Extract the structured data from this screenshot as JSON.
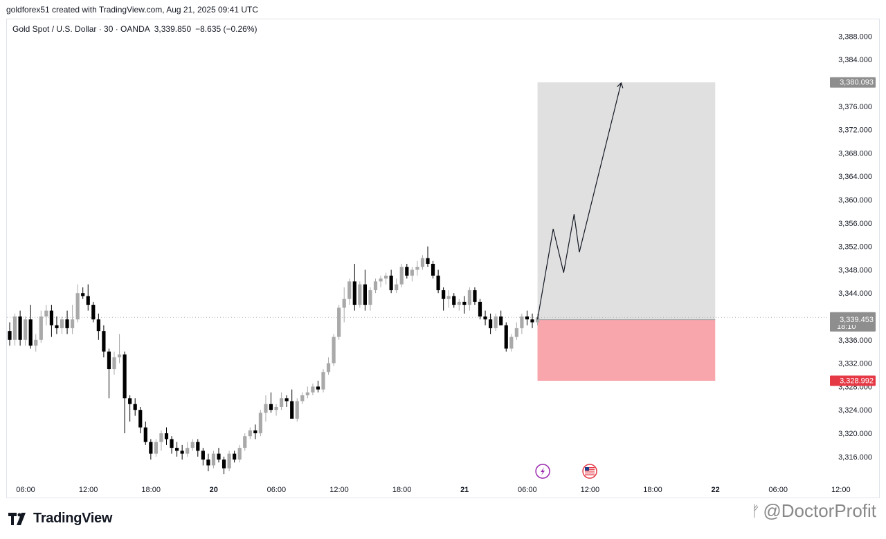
{
  "header": {
    "attribution": "goldforex51 created with TradingView.com, Aug 21, 2025 09:41 UTC"
  },
  "legend": {
    "symbol": "Gold Spot / U.S. Dollar · 30 · OANDA",
    "last": "3,339.850",
    "change": "−8.635 (−0.26%)"
  },
  "branding": {
    "logo_text": "TradingView",
    "watermark": "@DoctorProfit"
  },
  "colors": {
    "up_candle": "#a9a9a9",
    "down_candle": "#000000",
    "target_zone": "#e0e0e0",
    "stop_zone": "#f8a5ac",
    "stop_badge": "#e53945",
    "price_badge": "#8e8e8e"
  },
  "chart_data": {
    "type": "candlestick",
    "y_axis": {
      "ticks": [
        "3,388.000",
        "3,384.000",
        "3,380.000",
        "3,376.000",
        "3,372.000",
        "3,368.000",
        "3,364.000",
        "3,360.000",
        "3,356.000",
        "3,352.000",
        "3,348.000",
        "3,344.000",
        "3,340.000",
        "3,336.000",
        "3,332.000",
        "3,328.000",
        "3,324.000",
        "3,320.000",
        "3,316.000"
      ],
      "tick_values": [
        3388,
        3384,
        3380,
        3376,
        3372,
        3368,
        3364,
        3360,
        3356,
        3352,
        3348,
        3344,
        3340,
        3336,
        3332,
        3328,
        3324,
        3320,
        3316
      ],
      "range": [
        3312,
        3391
      ]
    },
    "x_axis": {
      "ticks": [
        "06:00",
        "12:00",
        "18:00",
        "20",
        "06:00",
        "12:00",
        "18:00",
        "21",
        "06:00",
        "12:00",
        "18:00",
        "22",
        "06:00",
        "12:00"
      ],
      "tick_bar_index": [
        0,
        12,
        24,
        36,
        48,
        60,
        72,
        84,
        96,
        108,
        120,
        132,
        144,
        156
      ],
      "bold": [
        false,
        false,
        false,
        true,
        false,
        false,
        false,
        true,
        false,
        false,
        false,
        true,
        false,
        false
      ]
    },
    "price_labels": [
      {
        "value": 3380.093,
        "label": "3,380.093",
        "color": "#8e8e8e"
      },
      {
        "value": 3339.85,
        "label": "3,339.850",
        "sublabel": "18:10",
        "color": "#8e8e8e"
      },
      {
        "value": 3339.453,
        "label": "3,339.453",
        "color": "#8e8e8e"
      },
      {
        "value": 3328.992,
        "label": "3,328.992",
        "color": "#e53945"
      }
    ],
    "last_price": 3339.85,
    "position": {
      "entry": 3339.453,
      "target": 3380.093,
      "stop": 3328.992,
      "start_bar": 101,
      "end_bar": 135
    },
    "projection_path": [
      {
        "bar": 101,
        "price": 3339.5
      },
      {
        "bar": 104,
        "price": 3355.0
      },
      {
        "bar": 106,
        "price": 3347.5
      },
      {
        "bar": 108,
        "price": 3357.5
      },
      {
        "bar": 109,
        "price": 3351.0
      },
      {
        "bar": 117,
        "price": 3380.0
      }
    ],
    "events": [
      {
        "bar": 102,
        "icon": "lightning-icon"
      },
      {
        "bar": 111,
        "icon": "us-flag-icon"
      }
    ],
    "candles": [
      [
        3337.5,
        3339.0,
        3335.0,
        3336.0
      ],
      [
        3336.0,
        3340.5,
        3335.0,
        3340.0
      ],
      [
        3340.0,
        3341.0,
        3335.0,
        3336.0
      ],
      [
        3336.0,
        3340.0,
        3335.0,
        3339.5
      ],
      [
        3339.5,
        3342.0,
        3334.5,
        3335.0
      ],
      [
        3335.0,
        3337.0,
        3334.0,
        3336.0
      ],
      [
        3336.0,
        3341.0,
        3335.5,
        3340.0
      ],
      [
        3340.0,
        3342.0,
        3338.5,
        3341.0
      ],
      [
        3341.0,
        3342.0,
        3336.5,
        3338.5
      ],
      [
        3338.5,
        3340.0,
        3337.0,
        3338.0
      ],
      [
        3338.0,
        3340.0,
        3337.0,
        3339.5
      ],
      [
        3339.5,
        3341.0,
        3337.0,
        3338.0
      ],
      [
        3338.0,
        3342.0,
        3337.0,
        3339.5
      ],
      [
        3339.5,
        3345.5,
        3339.0,
        3344.0
      ],
      [
        3344.0,
        3345.0,
        3343.0,
        3343.5
      ],
      [
        3343.5,
        3345.5,
        3341.0,
        3342.0
      ],
      [
        3342.0,
        3342.5,
        3339.0,
        3339.5
      ],
      [
        3339.5,
        3340.5,
        3336.0,
        3337.5
      ],
      [
        3337.5,
        3338.5,
        3333.0,
        3334.0
      ],
      [
        3334.0,
        3334.5,
        3326.0,
        3331.0
      ],
      [
        3331.0,
        3334.0,
        3330.0,
        3333.0
      ],
      [
        3333.0,
        3337.0,
        3332.0,
        3333.5
      ],
      [
        3333.5,
        3334.0,
        3320.0,
        3326.0
      ],
      [
        3326.0,
        3326.5,
        3322.0,
        3325.0
      ],
      [
        3325.0,
        3326.0,
        3323.0,
        3324.0
      ],
      [
        3324.0,
        3324.5,
        3320.0,
        3321.0
      ],
      [
        3321.0,
        3322.0,
        3318.0,
        3318.5
      ],
      [
        3318.5,
        3319.0,
        3315.5,
        3316.5
      ],
      [
        3316.5,
        3319.0,
        3316.0,
        3318.5
      ],
      [
        3318.5,
        3320.5,
        3317.0,
        3320.0
      ],
      [
        3320.0,
        3321.0,
        3318.0,
        3319.0
      ],
      [
        3319.0,
        3319.5,
        3316.5,
        3317.5
      ],
      [
        3317.5,
        3318.5,
        3316.0,
        3317.0
      ],
      [
        3317.0,
        3318.0,
        3315.5,
        3316.5
      ],
      [
        3316.5,
        3318.5,
        3316.0,
        3317.5
      ],
      [
        3317.5,
        3319.0,
        3317.0,
        3318.5
      ],
      [
        3318.5,
        3319.0,
        3316.0,
        3317.0
      ],
      [
        3317.0,
        3317.5,
        3314.5,
        3315.5
      ],
      [
        3315.5,
        3316.5,
        3313.5,
        3314.5
      ],
      [
        3314.5,
        3317.0,
        3314.0,
        3316.5
      ],
      [
        3316.5,
        3317.5,
        3315.0,
        3315.5
      ],
      [
        3315.5,
        3316.0,
        3313.0,
        3314.0
      ],
      [
        3314.0,
        3317.0,
        3313.5,
        3316.5
      ],
      [
        3316.5,
        3317.0,
        3315.0,
        3315.5
      ],
      [
        3315.5,
        3318.0,
        3315.0,
        3317.5
      ],
      [
        3317.5,
        3320.0,
        3317.0,
        3319.5
      ],
      [
        3319.5,
        3321.0,
        3319.0,
        3320.5
      ],
      [
        3320.5,
        3321.5,
        3319.0,
        3320.0
      ],
      [
        3320.0,
        3324.0,
        3319.5,
        3323.5
      ],
      [
        3323.5,
        3326.5,
        3322.0,
        3325.0
      ],
      [
        3325.0,
        3327.0,
        3323.5,
        3324.0
      ],
      [
        3324.0,
        3325.0,
        3323.0,
        3324.5
      ],
      [
        3324.5,
        3327.0,
        3324.0,
        3326.0
      ],
      [
        3326.0,
        3326.5,
        3324.5,
        3325.5
      ],
      [
        3325.5,
        3327.5,
        3323.0,
        3322.5
      ],
      [
        3322.5,
        3326.0,
        3322.0,
        3325.5
      ],
      [
        3325.5,
        3327.0,
        3325.0,
        3326.5
      ],
      [
        3326.5,
        3328.0,
        3326.0,
        3327.0
      ],
      [
        3327.0,
        3328.5,
        3326.5,
        3328.0
      ],
      [
        3328.0,
        3329.0,
        3327.0,
        3327.5
      ],
      [
        3327.5,
        3331.0,
        3327.0,
        3330.5
      ],
      [
        3330.5,
        3333.0,
        3330.0,
        3332.0
      ],
      [
        3332.0,
        3337.0,
        3331.5,
        3336.5
      ],
      [
        3336.5,
        3342.0,
        3336.0,
        3341.5
      ],
      [
        3341.5,
        3345.0,
        3339.0,
        3343.0
      ],
      [
        3343.0,
        3346.5,
        3342.0,
        3346.0
      ],
      [
        3346.0,
        3349.0,
        3341.0,
        3342.0
      ],
      [
        3342.0,
        3346.0,
        3341.5,
        3345.5
      ],
      [
        3345.5,
        3348.0,
        3341.0,
        3342.0
      ],
      [
        3342.0,
        3345.0,
        3341.0,
        3344.5
      ],
      [
        3344.5,
        3346.5,
        3344.0,
        3346.0
      ],
      [
        3346.0,
        3347.0,
        3345.0,
        3346.5
      ],
      [
        3346.5,
        3347.5,
        3345.5,
        3347.0
      ],
      [
        3347.0,
        3348.0,
        3344.0,
        3344.5
      ],
      [
        3344.5,
        3346.5,
        3344.0,
        3345.5
      ],
      [
        3345.5,
        3349.0,
        3345.0,
        3348.5
      ],
      [
        3348.5,
        3349.0,
        3346.5,
        3347.0
      ],
      [
        3347.0,
        3348.5,
        3346.0,
        3348.0
      ],
      [
        3348.0,
        3349.5,
        3347.0,
        3348.5
      ],
      [
        3348.5,
        3350.5,
        3348.0,
        3350.0
      ],
      [
        3350.0,
        3352.0,
        3348.5,
        3349.0
      ],
      [
        3349.0,
        3349.5,
        3346.5,
        3347.0
      ],
      [
        3347.0,
        3348.0,
        3344.0,
        3344.5
      ],
      [
        3344.5,
        3345.0,
        3341.0,
        3343.0
      ],
      [
        3343.0,
        3344.5,
        3341.5,
        3343.5
      ],
      [
        3343.5,
        3344.0,
        3341.5,
        3342.0
      ],
      [
        3342.0,
        3343.0,
        3341.0,
        3342.5
      ],
      [
        3342.5,
        3343.5,
        3340.5,
        3342.0
      ],
      [
        3342.0,
        3345.0,
        3341.0,
        3344.5
      ],
      [
        3344.5,
        3345.0,
        3342.0,
        3342.5
      ],
      [
        3342.5,
        3343.0,
        3339.5,
        3340.0
      ],
      [
        3340.0,
        3341.0,
        3338.5,
        3339.5
      ],
      [
        3339.5,
        3340.5,
        3337.0,
        3338.0
      ],
      [
        3338.0,
        3340.5,
        3337.5,
        3340.0
      ],
      [
        3340.0,
        3341.0,
        3338.5,
        3338.5
      ],
      [
        3338.5,
        3339.0,
        3334.0,
        3334.5
      ],
      [
        3334.5,
        3337.0,
        3334.0,
        3336.5
      ],
      [
        3336.5,
        3339.0,
        3336.0,
        3338.0
      ],
      [
        3338.0,
        3340.5,
        3337.0,
        3340.0
      ],
      [
        3340.0,
        3341.0,
        3338.5,
        3339.5
      ],
      [
        3339.5,
        3340.5,
        3338.0,
        3339.0
      ],
      [
        3339.0,
        3340.5,
        3338.5,
        3339.85
      ]
    ]
  }
}
